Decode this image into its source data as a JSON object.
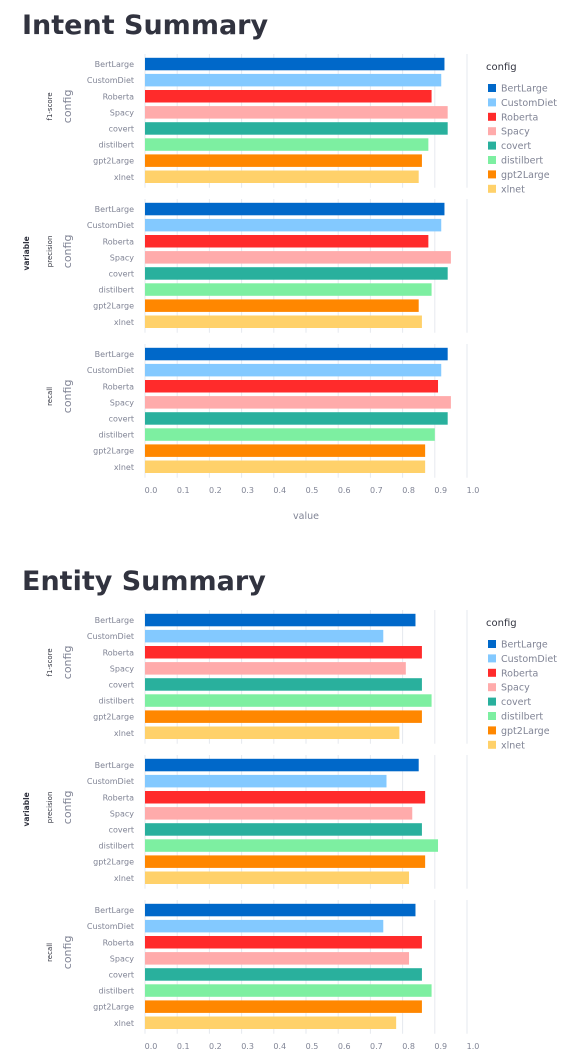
{
  "sections": {
    "intent": {
      "title": "Intent Summary"
    },
    "entity": {
      "title": "Entity Summary"
    }
  },
  "colors": {
    "BertLarge": "#0068c9",
    "CustomDiet": "#83c9ff",
    "Roberta": "#ff2b2b",
    "Spacy": "#ffabab",
    "covert": "#29b09d",
    "distilbert": "#7defa1",
    "gpt2Large": "#ff8700",
    "xlnet": "#ffd16a"
  },
  "chart_data": [
    {
      "type": "bar",
      "orientation": "horizontal",
      "facet_label": "variable",
      "facets": [
        "f1-score",
        "precision",
        "recall"
      ],
      "row_axis_label": "config",
      "categories": [
        "BertLarge",
        "CustomDiet",
        "Roberta",
        "Spacy",
        "covert",
        "distilbert",
        "gpt2Large",
        "xlnet"
      ],
      "series": [
        {
          "name": "f1-score",
          "values": [
            0.93,
            0.92,
            0.89,
            0.94,
            0.94,
            0.88,
            0.86,
            0.85
          ]
        },
        {
          "name": "precision",
          "values": [
            0.93,
            0.92,
            0.88,
            0.95,
            0.94,
            0.89,
            0.85,
            0.86
          ]
        },
        {
          "name": "recall",
          "values": [
            0.94,
            0.92,
            0.91,
            0.95,
            0.94,
            0.9,
            0.87,
            0.87
          ]
        }
      ],
      "xlabel": "value",
      "xlim": [
        0,
        1.0
      ],
      "xticks": [
        "0.0",
        "0.1",
        "0.2",
        "0.3",
        "0.4",
        "0.5",
        "0.6",
        "0.7",
        "0.8",
        "0.9",
        "1.0"
      ],
      "legend_title": "config",
      "legend_position": "right",
      "grid": "vertical"
    },
    {
      "type": "bar",
      "orientation": "horizontal",
      "facet_label": "variable",
      "facets": [
        "f1-score",
        "precision",
        "recall"
      ],
      "row_axis_label": "config",
      "categories": [
        "BertLarge",
        "CustomDiet",
        "Roberta",
        "Spacy",
        "covert",
        "distilbert",
        "gpt2Large",
        "xlnet"
      ],
      "series": [
        {
          "name": "f1-score",
          "values": [
            0.84,
            0.74,
            0.86,
            0.81,
            0.86,
            0.89,
            0.86,
            0.79
          ]
        },
        {
          "name": "precision",
          "values": [
            0.85,
            0.75,
            0.87,
            0.83,
            0.86,
            0.91,
            0.87,
            0.82
          ]
        },
        {
          "name": "recall",
          "values": [
            0.84,
            0.74,
            0.86,
            0.82,
            0.86,
            0.89,
            0.86,
            0.78
          ]
        }
      ],
      "xlabel": "",
      "xlim": [
        0,
        1.0
      ],
      "xticks": [
        "0.0",
        "0.1",
        "0.2",
        "0.3",
        "0.4",
        "0.5",
        "0.6",
        "0.7",
        "0.8",
        "0.9",
        "1.0"
      ],
      "legend_title": "config",
      "legend_position": "right",
      "grid": "vertical"
    }
  ]
}
